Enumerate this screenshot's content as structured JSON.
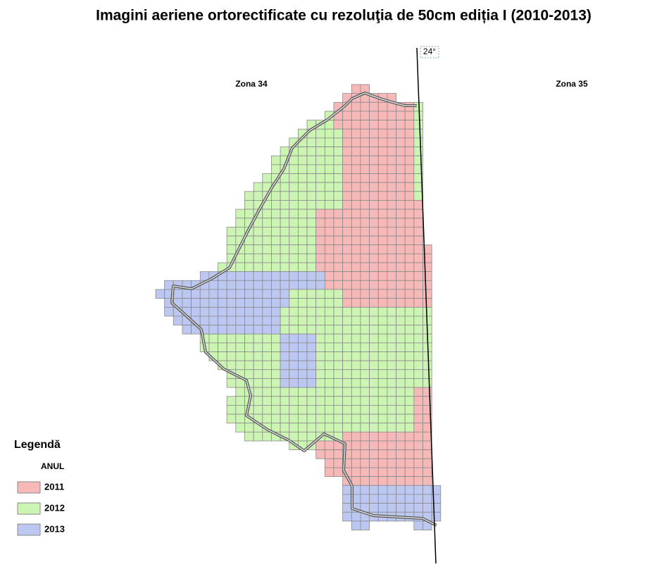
{
  "title": "Imagini aeriene ortorectificate cu rezoluţia de 50cm ediția I (2010-2013)",
  "meridian_label": "24°",
  "zones": [
    "Zona 34",
    "Zona 35"
  ],
  "legend": {
    "title": "Legendă",
    "subtitle": "ANUL",
    "items": [
      {
        "label": "2011",
        "color": "#f7b8b8"
      },
      {
        "label": "2012",
        "color": "#ccf5b4"
      },
      {
        "label": "2013",
        "color": "#bcc8f2"
      }
    ]
  }
}
